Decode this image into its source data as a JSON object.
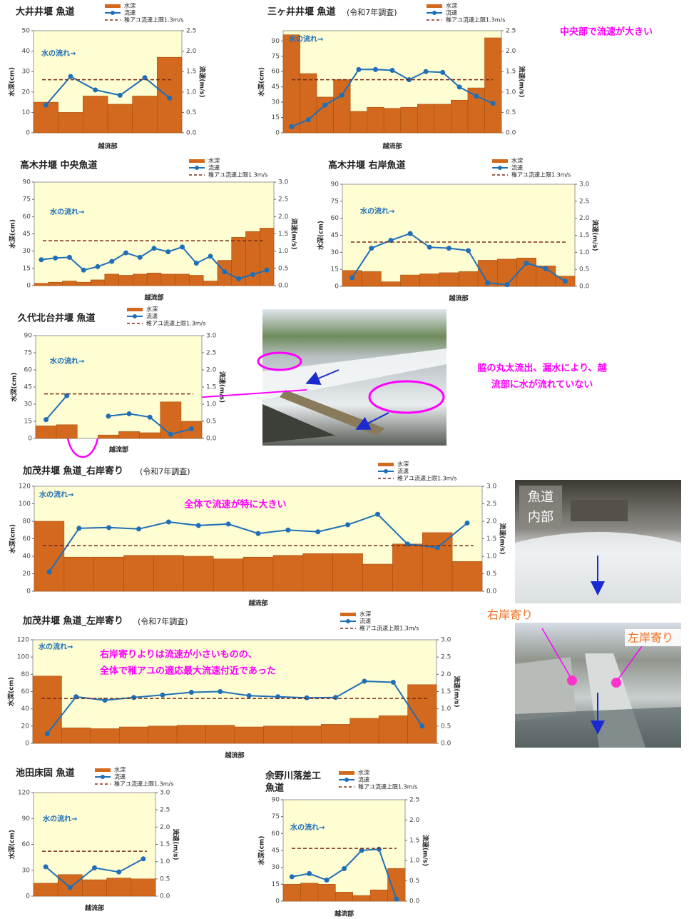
{
  "chart_data": [
    {
      "type": "combo",
      "title": "大井井堰 魚道",
      "flow_label": "水の流れ→",
      "x_label": "越流部",
      "y_label": "水深(cm)",
      "y2_label": "流速(m/s)",
      "categories": [
        null,
        null,
        null,
        null,
        null,
        null
      ],
      "series": [
        {
          "name": "水深",
          "color": "#d2691e",
          "values": [
            15,
            10,
            18,
            14,
            18,
            37
          ]
        },
        {
          "name": "流速",
          "color": "#1f6fb8",
          "axis": "y2",
          "values": [
            0.68,
            1.38,
            1.05,
            0.92,
            1.35,
            0.85
          ]
        }
      ],
      "reference": {
        "name": "稚アユ流速上限1.3m/s",
        "value": 1.3,
        "axis": "y2",
        "color": "#7b2a1a"
      },
      "ylim": [
        0,
        50
      ],
      "yticks": [
        0,
        10,
        20,
        30,
        40,
        50
      ],
      "y2lim": [
        0,
        2.5
      ],
      "y2ticks": [
        {
          "value": 0,
          "label": "0.0"
        },
        0.5,
        {
          "value": 1,
          "label": "1.0"
        },
        1.5,
        {
          "value": 2,
          "label": "2.0"
        },
        2.5
      ]
    },
    {
      "type": "combo",
      "title": "三ヶ井井堰 魚道",
      "subtitle": "(令和7年調査)",
      "flow_label": "水の流れ→",
      "x_label": "越流部",
      "y_label": "水深(cm)",
      "y2_label": "流速(m/s)",
      "annotation": [
        "中央部で流速が大きい"
      ],
      "categories": [
        null,
        null,
        null,
        null,
        null,
        null,
        null,
        null,
        null,
        null,
        null,
        null,
        null
      ],
      "series": [
        {
          "name": "水深",
          "color": "#d2691e",
          "values": [
            96,
            58,
            35,
            52,
            21,
            25,
            24,
            25,
            28,
            28,
            32,
            44,
            93
          ]
        },
        {
          "name": "流速",
          "color": "#1f6fb8",
          "axis": "y2",
          "values": [
            0.15,
            0.32,
            0.68,
            0.92,
            1.55,
            1.55,
            1.53,
            1.3,
            1.5,
            1.48,
            1.12,
            0.9,
            0.72
          ]
        }
      ],
      "reference": {
        "name": "稚アユ流速上限1.3m/s",
        "value": 1.3,
        "axis": "y2",
        "color": "#7b2a1a"
      },
      "ylim": [
        0,
        100
      ],
      "yticks": [
        0,
        15,
        30,
        45,
        60,
        75,
        90
      ],
      "y2lim": [
        0,
        2.5
      ],
      "y2ticks": [
        {
          "value": 0,
          "label": "0.0"
        },
        0.5,
        {
          "value": 1,
          "label": "1.0"
        },
        1.5,
        {
          "value": 2,
          "label": "2.0"
        },
        2.5
      ]
    },
    {
      "type": "combo",
      "title": "高木井堰 中央魚道",
      "flow_label": "水の流れ→",
      "x_label": "越流部",
      "y_label": "水深(cm)",
      "y2_label": "流速(m/s)",
      "categories": [
        null,
        null,
        null,
        null,
        null,
        null,
        null,
        null,
        null,
        null,
        null,
        null,
        null,
        null,
        null,
        null,
        null
      ],
      "series": [
        {
          "name": "水深",
          "color": "#d2691e",
          "values": [
            2,
            3,
            4,
            3,
            5,
            10,
            9,
            10,
            11,
            10,
            10,
            9,
            4,
            22,
            42,
            47,
            50
          ]
        },
        {
          "name": "流速",
          "color": "#1f6fb8",
          "axis": "y2",
          "values": [
            0.75,
            0.8,
            0.82,
            0.45,
            0.55,
            0.7,
            0.95,
            0.82,
            1.08,
            0.98,
            1.12,
            0.65,
            0.85,
            0.4,
            0.2,
            0.32,
            0.45
          ]
        }
      ],
      "reference": {
        "name": "稚アユ流速上限1.3m/s",
        "value": 1.3,
        "axis": "y2",
        "color": "#7b2a1a"
      },
      "ylim": [
        0,
        90
      ],
      "yticks": [
        0,
        15,
        30,
        45,
        60,
        75,
        90
      ],
      "y2lim": [
        0,
        3
      ],
      "y2ticks": [
        {
          "value": 0,
          "label": "0.0"
        },
        0.5,
        {
          "value": 1,
          "label": "1.0"
        },
        1.5,
        {
          "value": 2,
          "label": "2.0"
        },
        2.5,
        {
          "value": 3,
          "label": "3.0"
        }
      ]
    },
    {
      "type": "combo",
      "title": "高木井堰 右岸魚道",
      "flow_label": "水の流れ→",
      "x_label": "越流部",
      "y_label": "水深(cm)",
      "y2_label": "流速(m/s)",
      "categories": [
        null,
        null,
        null,
        null,
        null,
        null,
        null,
        null,
        null,
        null,
        null,
        null
      ],
      "series": [
        {
          "name": "水深",
          "color": "#d2691e",
          "values": [
            14,
            13,
            4,
            10,
            11,
            12,
            13,
            23,
            24,
            25,
            18,
            9
          ]
        },
        {
          "name": "流速",
          "color": "#1f6fb8",
          "axis": "y2",
          "values": [
            0.25,
            1.12,
            1.35,
            1.55,
            1.15,
            1.12,
            1.05,
            0.1,
            0.05,
            0.68,
            0.52,
            0.15
          ]
        }
      ],
      "reference": {
        "name": "稚アユ流速上限1.3m/s",
        "value": 1.3,
        "axis": "y2",
        "color": "#7b2a1a"
      },
      "ylim": [
        0,
        90
      ],
      "yticks": [
        0,
        15,
        30,
        45,
        60,
        75,
        90
      ],
      "y2lim": [
        0,
        3
      ],
      "y2ticks": [
        {
          "value": 0,
          "label": "0.0"
        },
        0.5,
        {
          "value": 1,
          "label": "1.0"
        },
        1.5,
        {
          "value": 2,
          "label": "2.0"
        },
        2.5,
        {
          "value": 3,
          "label": "3.0"
        }
      ]
    },
    {
      "type": "combo",
      "title": "久代北台井堰 魚道",
      "flow_label": "水の流れ→",
      "x_label": "越流部",
      "y_label": "水深(cm)",
      "y2_label": "流速(m/s)",
      "annotation": [
        "脇の丸太流出、漏水により、越",
        "流部に水が流れていない"
      ],
      "categories": [
        null,
        null,
        null,
        null,
        null,
        null,
        null,
        null
      ],
      "series": [
        {
          "name": "水深",
          "color": "#d2691e",
          "values": [
            11,
            12,
            0,
            3,
            6,
            5,
            32,
            15
          ]
        },
        {
          "name": "流速",
          "color": "#1f6fb8",
          "axis": "y2",
          "values": [
            0.55,
            1.25,
            null,
            0.65,
            0.72,
            0.62,
            0.12,
            0.28
          ]
        }
      ],
      "reference": {
        "name": "稚アユ流速上限1.3m/s",
        "value": 1.3,
        "axis": "y2",
        "color": "#7b2a1a"
      },
      "ylim": [
        0,
        90
      ],
      "yticks": [
        0,
        15,
        30,
        45,
        60,
        75,
        90
      ],
      "y2lim": [
        0,
        3
      ],
      "y2ticks": [
        {
          "value": 0,
          "label": "0.0"
        },
        0.5,
        {
          "value": 1,
          "label": "1.0"
        },
        1.5,
        {
          "value": 2,
          "label": "2.0"
        },
        2.5,
        {
          "value": 3,
          "label": "3.0"
        }
      ]
    },
    {
      "type": "combo",
      "title": "加茂井堰 魚道_右岸寄り",
      "subtitle": "(令和7年調査)",
      "flow_label": "水の流れ→",
      "x_label": "越流部",
      "y_label": "水深(cm)",
      "y2_label": "流速(m/s)",
      "annotation": [
        "全体で流速が特に大きい"
      ],
      "categories": [
        null,
        null,
        null,
        null,
        null,
        null,
        null,
        null,
        null,
        null,
        null,
        null,
        null,
        null,
        null
      ],
      "series": [
        {
          "name": "水深",
          "color": "#d2691e",
          "values": [
            80,
            39,
            39,
            41,
            41,
            40,
            37,
            39,
            41,
            43,
            43,
            31,
            54,
            67,
            34
          ]
        },
        {
          "name": "流速",
          "color": "#1f6fb8",
          "axis": "y2",
          "values": [
            0.55,
            1.8,
            1.82,
            1.78,
            1.98,
            1.88,
            1.92,
            1.65,
            1.75,
            1.7,
            1.9,
            2.2,
            1.35,
            1.25,
            1.95
          ]
        }
      ],
      "reference": {
        "name": "稚アユ流速上限1.3m/s",
        "value": 1.3,
        "axis": "y2",
        "color": "#7b2a1a"
      },
      "ylim": [
        0,
        120
      ],
      "yticks": [
        0,
        20,
        40,
        60,
        80,
        100,
        120
      ],
      "y2lim": [
        0,
        3
      ],
      "y2ticks": [
        {
          "value": 0,
          "label": "0.0"
        },
        0.5,
        {
          "value": 1,
          "label": "1.0"
        },
        1.5,
        {
          "value": 2,
          "label": "2.0"
        },
        2.5,
        {
          "value": 3,
          "label": "3.0"
        }
      ]
    },
    {
      "type": "combo",
      "title": "加茂井堰 魚道_左岸寄り",
      "subtitle": "(令和7年調査)",
      "flow_label": "水の流れ→",
      "x_label": "越流部",
      "y_label": "水深(cm)",
      "y2_label": "流速(m/s)",
      "annotation": [
        "右岸寄りよりは流速が小さいものの、",
        "全体で稚アユの適応最大流速付近であった"
      ],
      "categories": [
        null,
        null,
        null,
        null,
        null,
        null,
        null,
        null,
        null,
        null,
        null,
        null,
        null,
        null
      ],
      "series": [
        {
          "name": "水深",
          "color": "#d2691e",
          "values": [
            78,
            18,
            17,
            19,
            20,
            21,
            21,
            19,
            20,
            20,
            22,
            29,
            32,
            68
          ]
        },
        {
          "name": "流速",
          "color": "#1f6fb8",
          "axis": "y2",
          "values": [
            0.28,
            1.35,
            1.25,
            1.33,
            1.4,
            1.48,
            1.5,
            1.38,
            1.35,
            1.32,
            1.33,
            1.8,
            1.77,
            0.5
          ]
        }
      ],
      "reference": {
        "name": "稚アユ流速上限1.3m/s",
        "value": 1.3,
        "axis": "y2",
        "color": "#7b2a1a"
      },
      "ylim": [
        0,
        120
      ],
      "yticks": [
        0,
        20,
        40,
        60,
        80,
        100,
        120
      ],
      "y2lim": [
        0,
        3
      ],
      "y2ticks": [
        {
          "value": 0,
          "label": "0.0"
        },
        0.5,
        {
          "value": 1,
          "label": "1.0"
        },
        1.5,
        {
          "value": 2,
          "label": "2.0"
        },
        2.5,
        {
          "value": 3,
          "label": "3.0"
        }
      ]
    },
    {
      "type": "combo",
      "title": "池田床固 魚道",
      "flow_label": "水の流れ→",
      "x_label": "越流部",
      "y_label": "水深(cm)",
      "y2_label": "流速(m/s)",
      "categories": [
        null,
        null,
        null,
        null,
        null
      ],
      "series": [
        {
          "name": "水深",
          "color": "#d2691e",
          "values": [
            15,
            25,
            19,
            21,
            20
          ]
        },
        {
          "name": "流速",
          "color": "#1f6fb8",
          "axis": "y2",
          "values": [
            0.85,
            0.25,
            0.82,
            0.7,
            1.08
          ]
        }
      ],
      "reference": {
        "name": "稚アユ流速上限1.3m/s",
        "value": 1.3,
        "axis": "y2",
        "color": "#7b2a1a"
      },
      "ylim": [
        0,
        120
      ],
      "yticks": [
        0,
        30,
        60,
        90,
        120
      ],
      "y2lim": [
        0,
        3
      ],
      "y2ticks": [
        {
          "value": 0,
          "label": "0.0"
        },
        0.5,
        {
          "value": 1,
          "label": "1.0"
        },
        1.5,
        {
          "value": 2,
          "label": "2.0"
        },
        2.5,
        {
          "value": 3,
          "label": "3.0"
        }
      ]
    },
    {
      "type": "combo",
      "title": [
        "余野川落差工",
        "魚道"
      ],
      "flow_label": "水の流れ→",
      "x_label": "越流部",
      "y_label": "水深(cm)",
      "y2_label": "流速(m/s)",
      "categories": [
        null,
        null,
        null,
        null,
        null,
        null,
        null
      ],
      "series": [
        {
          "name": "水深",
          "color": "#d2691e",
          "values": [
            15,
            16,
            15,
            8,
            5,
            10,
            29
          ]
        },
        {
          "name": "流速",
          "color": "#1f6fb8",
          "axis": "y2",
          "values": [
            0.6,
            0.68,
            0.52,
            0.8,
            1.25,
            1.28,
            0.05
          ]
        }
      ],
      "reference": {
        "name": "稚アユ流速上限1.3m/s",
        "value": 1.3,
        "axis": "y2",
        "color": "#7b2a1a"
      },
      "ylim": [
        0,
        90
      ],
      "yticks": [
        0,
        15,
        30,
        45,
        60,
        75,
        90
      ],
      "y2lim": [
        0,
        2.5
      ],
      "y2ticks": [
        {
          "value": 0,
          "label": "0.0"
        },
        0.5,
        {
          "value": 1,
          "label": "1.0"
        },
        1.5,
        {
          "value": 2,
          "label": "2.0"
        },
        2.5
      ]
    }
  ],
  "photos": [
    {
      "labels": [
        "魚道",
        "内部"
      ]
    },
    {
      "labels": [
        "右岸寄り",
        "左岸寄り"
      ]
    }
  ]
}
